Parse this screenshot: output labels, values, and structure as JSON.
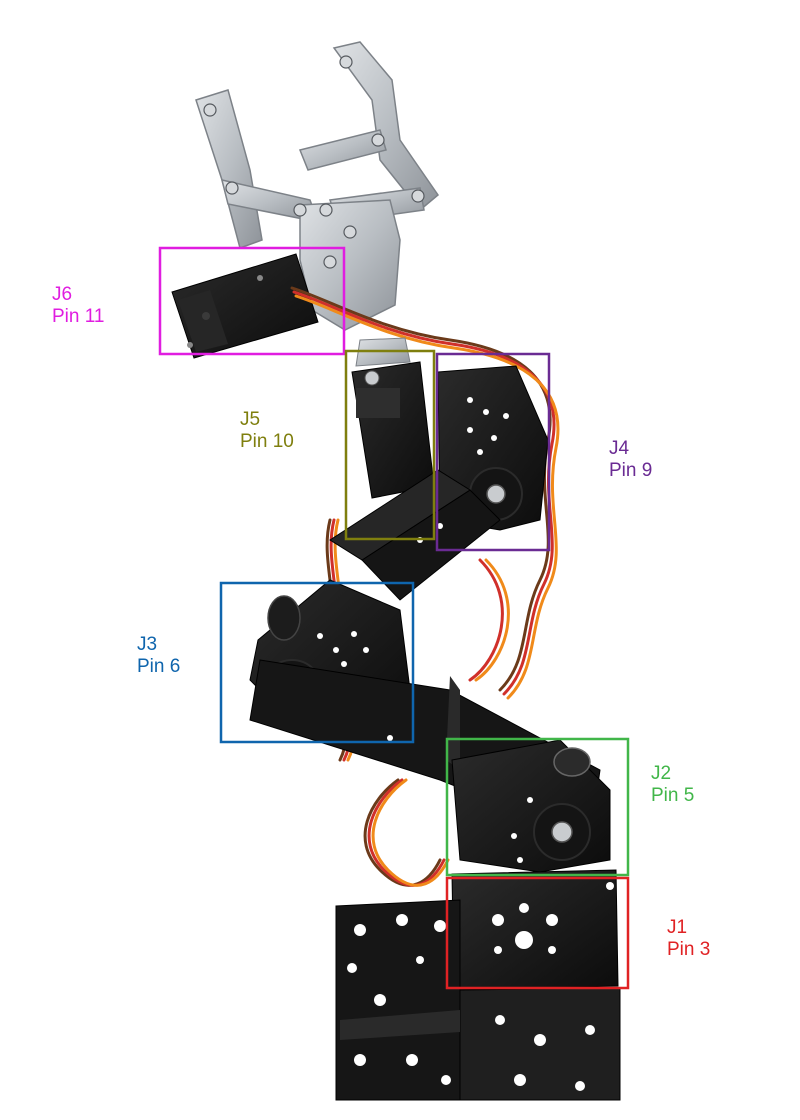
{
  "joints": [
    {
      "id": "j6",
      "name": "J6",
      "pin": "Pin 11",
      "color": "#e01de0"
    },
    {
      "id": "j5",
      "name": "J5",
      "pin": "Pin 10",
      "color": "#7f7f0e"
    },
    {
      "id": "j4",
      "name": "J4",
      "pin": "Pin 9",
      "color": "#6a2b93"
    },
    {
      "id": "j3",
      "name": "J3",
      "pin": "Pin 6",
      "color": "#0f65ad"
    },
    {
      "id": "j2",
      "name": "J2",
      "pin": "Pin 5",
      "color": "#41b649"
    },
    {
      "id": "j1",
      "name": "J1",
      "pin": "Pin 3",
      "color": "#e02224"
    }
  ],
  "colors": {
    "aluminum": "#bfc4c8",
    "servo_body": "#1a1a1a",
    "bracket": "#111111",
    "wire_brown": "#6b3a1a",
    "wire_red": "#d0302a",
    "wire_orange": "#f08a1a",
    "screw": "#c9cccf"
  }
}
